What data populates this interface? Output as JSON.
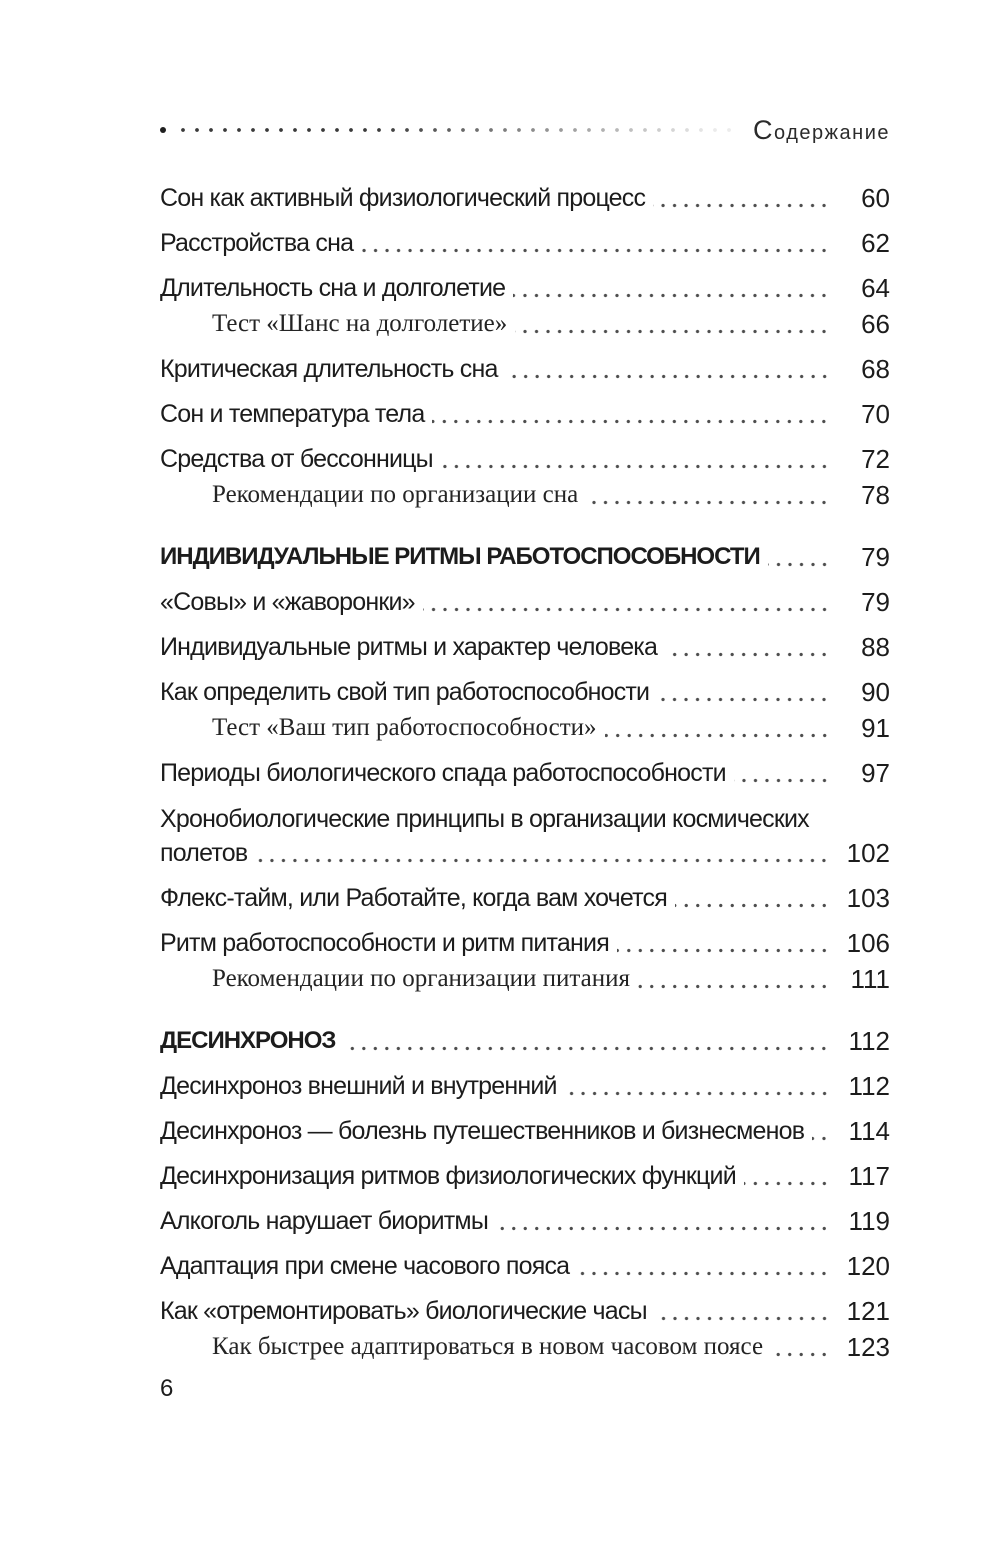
{
  "page": {
    "footer_page_number": "6"
  },
  "header": {
    "running_title": "Содержание"
  },
  "colors": {
    "text": "#1c1c1c",
    "leader_dot": "#4d4d4d",
    "header_title": "#2b2b2b",
    "background": "#ffffff"
  },
  "toc": {
    "entries": [
      {
        "type": "chapter",
        "title": "Сон как активный физиологический процесс",
        "page": "60"
      },
      {
        "type": "chapter",
        "title": "Расстройства сна",
        "page": "62"
      },
      {
        "type": "chapter",
        "title": "Длительность сна и долголетие",
        "page": "64"
      },
      {
        "type": "sub",
        "title": "Тест «Шанс на долголетие»",
        "page": "66"
      },
      {
        "type": "chapter",
        "title": "Критическая длительность сна",
        "page": "68"
      },
      {
        "type": "chapter",
        "title": "Сон и температура тела",
        "page": "70"
      },
      {
        "type": "chapter",
        "title": "Средства от бессонницы",
        "page": "72"
      },
      {
        "type": "sub",
        "title": "Рекомендации по организации сна",
        "page": "78"
      },
      {
        "type": "section",
        "title": "ИНДИВИДУАЛЬНЫЕ РИТМЫ РАБОТОСПОСОБНОСТИ",
        "page": "79"
      },
      {
        "type": "chapter",
        "title": "«Совы» и «жаворонки»",
        "page": "79"
      },
      {
        "type": "chapter",
        "title": "Индивидуальные ритмы и характер человека",
        "page": "88"
      },
      {
        "type": "chapter",
        "title": "Как определить свой тип работоспособности",
        "page": "90"
      },
      {
        "type": "sub",
        "title": "Тест «Ваш тип работоспособности»",
        "page": "91"
      },
      {
        "type": "chapter",
        "title": "Периоды биологического спада работоспособности",
        "page": "97"
      },
      {
        "type": "chapter",
        "title": "Хронобиологические принципы в организации космических",
        "title_line2": "полетов",
        "page": "102"
      },
      {
        "type": "chapter",
        "title": "Флекс-тайм, или Работайте, когда вам хочется",
        "page": "103"
      },
      {
        "type": "chapter",
        "title": "Ритм работоспособности и ритм питания",
        "page": "106"
      },
      {
        "type": "sub",
        "title": "Рекомендации по организации питания",
        "page": "111"
      },
      {
        "type": "section",
        "title": "ДЕСИНХРОНОЗ",
        "page": "112"
      },
      {
        "type": "chapter",
        "title": "Десинхроноз внешний и внутренний",
        "page": "112"
      },
      {
        "type": "chapter",
        "title": "Десинхроноз — болезнь путешественников и бизнесменов",
        "page": "114"
      },
      {
        "type": "chapter",
        "title": "Десинхронизация ритмов физиологических функций",
        "page": "117"
      },
      {
        "type": "chapter",
        "title": "Алкоголь нарушает биоритмы",
        "page": "119"
      },
      {
        "type": "chapter",
        "title": "Адаптация при смене часового пояса",
        "page": "120"
      },
      {
        "type": "chapter",
        "title": "Как «отремонтировать» биологические часы",
        "page": "121"
      },
      {
        "type": "sub",
        "title": "Как быстрее адаптироваться в новом часовом поясе",
        "page": "123"
      }
    ]
  }
}
